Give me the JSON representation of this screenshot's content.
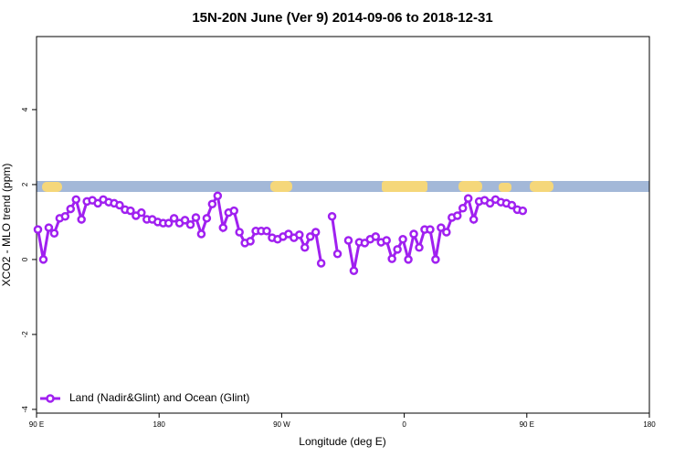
{
  "chart_data": {
    "type": "line",
    "title": "15N-20N June (Ver 9)   2014-09-06 to 2018-12-31",
    "x_label": "Longitude (deg E)",
    "y_label": "XCO2 - MLO trend (ppm)",
    "xlim": [
      90,
      540
    ],
    "xticks": [
      {
        "value": 90,
        "label": "90 E"
      },
      180,
      {
        "value": 270,
        "label": "90 W"
      },
      {
        "value": 360,
        "label": "0"
      },
      {
        "value": 450,
        "label": "90 E"
      },
      {
        "value": 540,
        "label": "180"
      }
    ],
    "ylim": [
      -4.1,
      5.95
    ],
    "yticks": [
      -4,
      -2,
      0,
      2,
      4
    ],
    "legend": "bottom-left",
    "x": [
      91,
      95,
      99,
      103,
      107,
      111,
      115,
      119,
      123,
      127,
      131,
      135,
      139,
      143,
      147,
      151,
      155,
      159,
      163,
      167,
      171,
      175,
      179,
      183,
      187,
      191,
      195,
      199,
      203,
      207,
      211,
      215,
      219,
      223,
      227,
      231,
      235,
      239,
      243,
      247,
      251,
      255,
      259,
      263,
      267,
      271,
      275,
      279,
      283,
      287,
      291,
      295,
      299,
      303,
      307,
      311,
      315,
      319,
      323,
      327,
      331,
      335,
      339,
      343,
      347,
      351,
      355,
      359,
      363,
      367,
      371,
      375,
      379,
      383,
      387,
      391,
      395,
      399,
      403,
      407,
      411,
      415,
      419,
      423,
      427,
      431,
      435,
      439,
      443,
      447
    ],
    "series": [
      {
        "name": "Land (Nadir&Glint) and Ocean (Glint)",
        "color": "#a020f0",
        "values": [
          0.8,
          0.0,
          0.85,
          0.7,
          1.1,
          1.15,
          1.35,
          1.6,
          1.07,
          1.55,
          1.58,
          1.5,
          1.6,
          1.53,
          1.5,
          1.45,
          1.33,
          1.3,
          1.17,
          1.25,
          1.07,
          1.07,
          1.0,
          0.97,
          0.97,
          1.1,
          0.97,
          1.05,
          0.93,
          1.12,
          0.68,
          1.1,
          1.48,
          1.7,
          0.85,
          1.25,
          1.3,
          0.73,
          0.44,
          0.49,
          0.76,
          0.76,
          0.76,
          0.58,
          0.54,
          0.61,
          0.68,
          0.58,
          0.66,
          0.32,
          0.61,
          0.73,
          -0.1,
          null,
          1.15,
          0.15,
          null,
          0.51,
          -0.3,
          0.46,
          0.44,
          0.54,
          0.61,
          0.46,
          0.51,
          0.02,
          0.27,
          0.54,
          0.0,
          0.68,
          0.32,
          0.8,
          0.8,
          0.0,
          0.85,
          0.73,
          1.12,
          1.17,
          1.37,
          1.63,
          1.07,
          1.55,
          1.58,
          1.5,
          1.6,
          1.53,
          1.5,
          1.45,
          1.33,
          1.3
        ]
      }
    ]
  }
}
